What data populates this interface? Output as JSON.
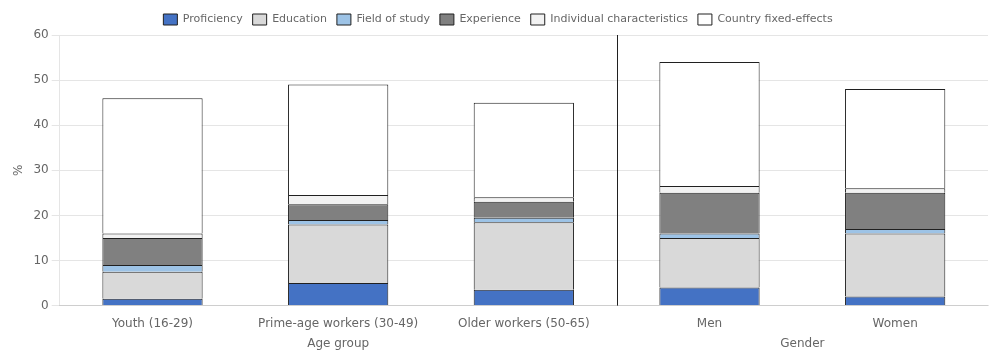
{
  "chart_data": {
    "type": "bar",
    "stacked": true,
    "categories": [
      "Youth (16-29)",
      "Prime-age workers (30-49)",
      "Older workers (50-65)",
      "Men",
      "Women"
    ],
    "series": [
      {
        "name": "Proficiency",
        "color": "#4472C4",
        "values": [
          1.5,
          5.0,
          3.5,
          4.0,
          2.0
        ]
      },
      {
        "name": "Education",
        "color": "#D9D9D9",
        "values": [
          6.0,
          13.0,
          15.0,
          11.0,
          14.0
        ]
      },
      {
        "name": "Field of study",
        "color": "#9DC3E6",
        "values": [
          1.5,
          1.0,
          1.0,
          1.0,
          1.0
        ]
      },
      {
        "name": "Experience",
        "color": "#808080",
        "values": [
          6.0,
          3.5,
          3.5,
          9.0,
          8.0
        ]
      },
      {
        "name": "Individual characteristics",
        "color": "#F2F2F2",
        "values": [
          1.0,
          2.0,
          1.0,
          1.5,
          1.0
        ]
      },
      {
        "name": "Country fixed-effects",
        "color": "#FFFFFF",
        "values": [
          30.0,
          24.5,
          21.0,
          27.5,
          22.0
        ]
      }
    ],
    "y_label": "%",
    "ylim": [
      0,
      60
    ],
    "yticks": [
      0,
      10,
      20,
      30,
      40,
      50,
      60
    ],
    "grid": true,
    "legend": "top",
    "annotations": [
      {
        "text": "Age group",
        "categories": [
          "Youth (16-29)",
          "Prime-age workers (30-49)",
          "Older workers (50-65)"
        ]
      },
      {
        "text": "Gender",
        "categories": [
          "Men",
          "Women"
        ]
      }
    ]
  }
}
